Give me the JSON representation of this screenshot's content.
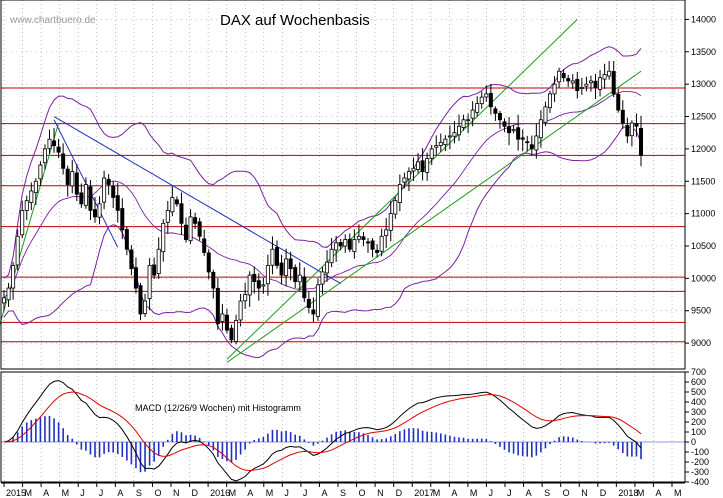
{
  "watermark": "www.chartbuero.de",
  "colors": {
    "background": "#ffffff",
    "candle": "#000000",
    "hline": "#c00000",
    "bollinger": "#7a1fa2",
    "channel_up": "#1f9a1f",
    "downtrend": "#2030c0",
    "macd_line": "#000000",
    "signal_line": "#e00000",
    "histogram": "#2030c0",
    "grid": "#9a9a9a"
  },
  "chart_data": [
    {
      "type": "candlestick",
      "title": "DAX auf Wochenbasis",
      "ylim": [
        8600,
        14300
      ],
      "y_ticks": [
        9000,
        9500,
        10000,
        10500,
        11000,
        11500,
        12000,
        12500,
        13000,
        13500,
        14000
      ],
      "y_tick_labels": [
        "9000",
        "9500",
        "10000",
        "10500",
        "11000",
        "11500",
        "12000",
        "12500",
        "13000",
        "13500",
        "14000"
      ],
      "x_labels": [
        "2015",
        "M",
        "A",
        "M",
        "J",
        "J",
        "A",
        "S",
        "O",
        "N",
        "D",
        "2016",
        "M",
        "A",
        "M",
        "J",
        "J",
        "A",
        "S",
        "O",
        "N",
        "D",
        "2017",
        "M",
        "A",
        "M",
        "J",
        "J",
        "A",
        "S",
        "O",
        "N",
        "D",
        "2018",
        "M",
        "A",
        "M"
      ],
      "horizontal_lines": [
        9020,
        9320,
        9800,
        10020,
        10800,
        11430,
        11900,
        12390,
        12940
      ],
      "weekly_close": [
        9700,
        9850,
        10200,
        10650,
        11050,
        11200,
        11350,
        11500,
        11750,
        12000,
        12150,
        12050,
        11950,
        11700,
        11450,
        11650,
        11300,
        11150,
        11450,
        11050,
        10950,
        11150,
        11550,
        11450,
        11250,
        11050,
        10750,
        10450,
        10150,
        9850,
        9450,
        9650,
        10200,
        10050,
        10450,
        10850,
        11050,
        11250,
        11150,
        10850,
        10600,
        10950,
        10850,
        10650,
        10400,
        10100,
        9850,
        9300,
        9450,
        9200,
        9050,
        9350,
        9650,
        9750,
        10050,
        9950,
        9850,
        9900,
        10200,
        10450,
        10200,
        10050,
        10300,
        10150,
        9950,
        10050,
        9700,
        9550,
        9450,
        9900,
        10100,
        10250,
        10450,
        10550,
        10500,
        10600,
        10450,
        10600,
        10650,
        10600,
        10550,
        10450,
        10400,
        10650,
        10750,
        11000,
        11200,
        11450,
        11550,
        11650,
        11700,
        11800,
        11650,
        11850,
        12000,
        12050,
        12100,
        12150,
        12200,
        12250,
        12350,
        12450,
        12450,
        12600,
        12700,
        12800,
        12850,
        12650,
        12550,
        12450,
        12350,
        12250,
        12300,
        12150,
        12150,
        12100,
        12000,
        12200,
        12450,
        12650,
        12850,
        13000,
        13200,
        13100,
        13050,
        13050,
        12900,
        12950,
        13000,
        13050,
        12950,
        13100,
        13150,
        13200,
        12850,
        12600,
        12400,
        12200,
        12400,
        12350,
        11900
      ],
      "macd_label": "MACD (12/26/9 Wochen) mit Histogramm",
      "macd_ylim": [
        -400,
        700
      ],
      "macd_ticks": [
        -400,
        -300,
        -200,
        -100,
        0,
        100,
        200,
        300,
        400,
        500,
        600,
        700
      ],
      "macd_tick_labels": [
        "-400",
        "-300",
        "-200",
        "-100",
        "0",
        "100",
        "200",
        "300",
        "400",
        "500",
        "600",
        "700"
      ],
      "annotations": [
        "green rising trend channel 2016-2018",
        "blue falling trend lines 2015",
        "Bollinger Bands"
      ]
    }
  ]
}
